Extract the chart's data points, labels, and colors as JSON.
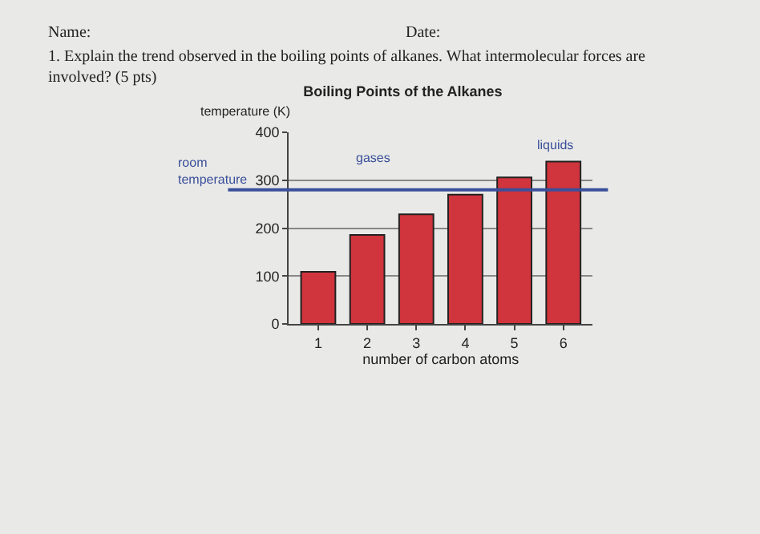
{
  "chart_data": {
    "type": "bar",
    "title": "Boiling Points of the Alkanes",
    "xlabel": "number of carbon atoms",
    "ylabel": "temperature (K)",
    "categories": [
      "1",
      "2",
      "3",
      "4",
      "5",
      "6"
    ],
    "values": [
      109,
      186,
      229,
      270,
      306,
      339
    ],
    "color": "#d0343c",
    "ylim": [
      0,
      400
    ],
    "yticks": [
      0,
      100,
      200,
      300,
      400
    ],
    "grid": "y",
    "ref_lines": [
      {
        "axis": "y",
        "value": 280,
        "label": "room temperature",
        "color": "#3a4f9a"
      }
    ],
    "annotations": [
      "Name:",
      "Date:",
      "1. Explain the trend observed in the boiling points of alkanes. What intermolecular forces are involved? (5 pts)",
      "gases",
      "liquids"
    ]
  }
}
